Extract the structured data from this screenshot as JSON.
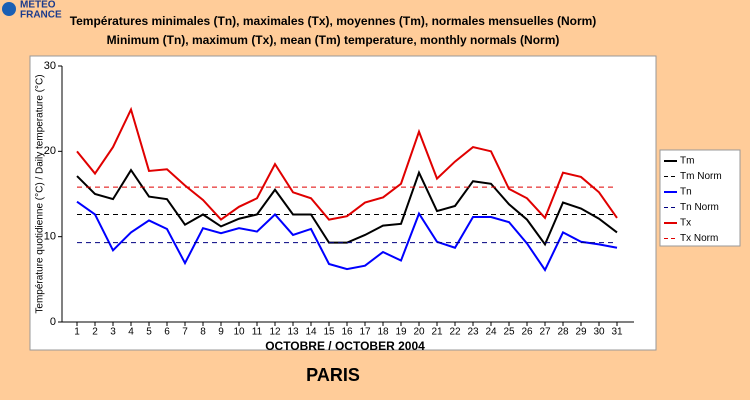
{
  "logo": {
    "line1": "METEO",
    "line2": "FRANCE"
  },
  "chart_data": {
    "type": "line",
    "title": "Températures minimales (Tn), maximales (Tx), moyennes (Tm), normales mensuelles (Norm)",
    "subtitle": "Minimum (Tn), maximum (Tx), mean (Tm) temperature, monthly normals (Norm)",
    "y_label": "Température quotidienne (°C) / Daily temperature (°C)",
    "x_label": "OCTOBRE / OCTOBER 2004",
    "annotation": "PARIS",
    "categories": [
      1,
      2,
      3,
      4,
      5,
      6,
      7,
      8,
      9,
      10,
      11,
      12,
      13,
      14,
      15,
      16,
      17,
      18,
      19,
      20,
      21,
      22,
      23,
      24,
      25,
      26,
      27,
      28,
      29,
      30,
      31
    ],
    "ylim": [
      0,
      30
    ],
    "yticks": [
      0,
      10,
      20,
      30
    ],
    "grid": false,
    "series": [
      {
        "name": "Tm",
        "color": "#000000",
        "dashed": false,
        "values": [
          17.1,
          15.0,
          14.4,
          17.8,
          14.7,
          14.4,
          11.4,
          12.6,
          11.2,
          12.1,
          12.6,
          15.5,
          12.6,
          12.6,
          9.3,
          9.3,
          10.2,
          11.3,
          11.5,
          17.5,
          13.0,
          13.6,
          16.5,
          16.2,
          13.8,
          12.0,
          9.1,
          14.0,
          13.3,
          12.1,
          10.5
        ]
      },
      {
        "name": "Tm Norm",
        "color": "#000000",
        "dashed": true,
        "values": [
          12.6,
          12.6,
          12.6,
          12.6,
          12.6,
          12.6,
          12.6,
          12.6,
          12.6,
          12.6,
          12.6,
          12.6,
          12.6,
          12.6,
          12.6,
          12.6,
          12.6,
          12.6,
          12.6,
          12.6,
          12.6,
          12.6,
          12.6,
          12.6,
          12.6,
          12.6,
          12.6,
          12.6,
          12.6,
          12.6,
          12.6
        ]
      },
      {
        "name": "Tn",
        "color": "#0000ff",
        "dashed": false,
        "values": [
          14.1,
          12.6,
          8.4,
          10.5,
          11.9,
          10.9,
          6.9,
          11.0,
          10.4,
          11.0,
          10.6,
          12.6,
          10.2,
          10.9,
          6.8,
          6.2,
          6.6,
          8.2,
          7.2,
          12.7,
          9.4,
          8.7,
          12.3,
          12.3,
          11.7,
          9.2,
          6.1,
          10.5,
          9.4,
          9.1,
          8.7
        ]
      },
      {
        "name": "Tn Norm",
        "color": "#000080",
        "dashed": true,
        "values": [
          9.3,
          9.3,
          9.3,
          9.3,
          9.3,
          9.3,
          9.3,
          9.3,
          9.3,
          9.3,
          9.3,
          9.3,
          9.3,
          9.3,
          9.3,
          9.3,
          9.3,
          9.3,
          9.3,
          9.3,
          9.3,
          9.3,
          9.3,
          9.3,
          9.3,
          9.3,
          9.3,
          9.3,
          9.3,
          9.3,
          9.3
        ]
      },
      {
        "name": "Tx",
        "color": "#e00000",
        "dashed": false,
        "values": [
          20.0,
          17.4,
          20.5,
          24.9,
          17.7,
          17.9,
          16.0,
          14.3,
          12.0,
          13.5,
          14.5,
          18.5,
          15.2,
          14.5,
          12.0,
          12.4,
          14.0,
          14.6,
          16.2,
          22.3,
          16.8,
          18.8,
          20.5,
          20.0,
          15.6,
          14.5,
          12.2,
          17.5,
          17.0,
          15.2,
          12.2
        ]
      },
      {
        "name": "Tx Norm",
        "color": "#e00000",
        "dashed": true,
        "values": [
          15.8,
          15.8,
          15.8,
          15.8,
          15.8,
          15.8,
          15.8,
          15.8,
          15.8,
          15.8,
          15.8,
          15.8,
          15.8,
          15.8,
          15.8,
          15.8,
          15.8,
          15.8,
          15.8,
          15.8,
          15.8,
          15.8,
          15.8,
          15.8,
          15.8,
          15.8,
          15.8,
          15.8,
          15.8,
          15.8,
          15.8
        ]
      }
    ]
  }
}
